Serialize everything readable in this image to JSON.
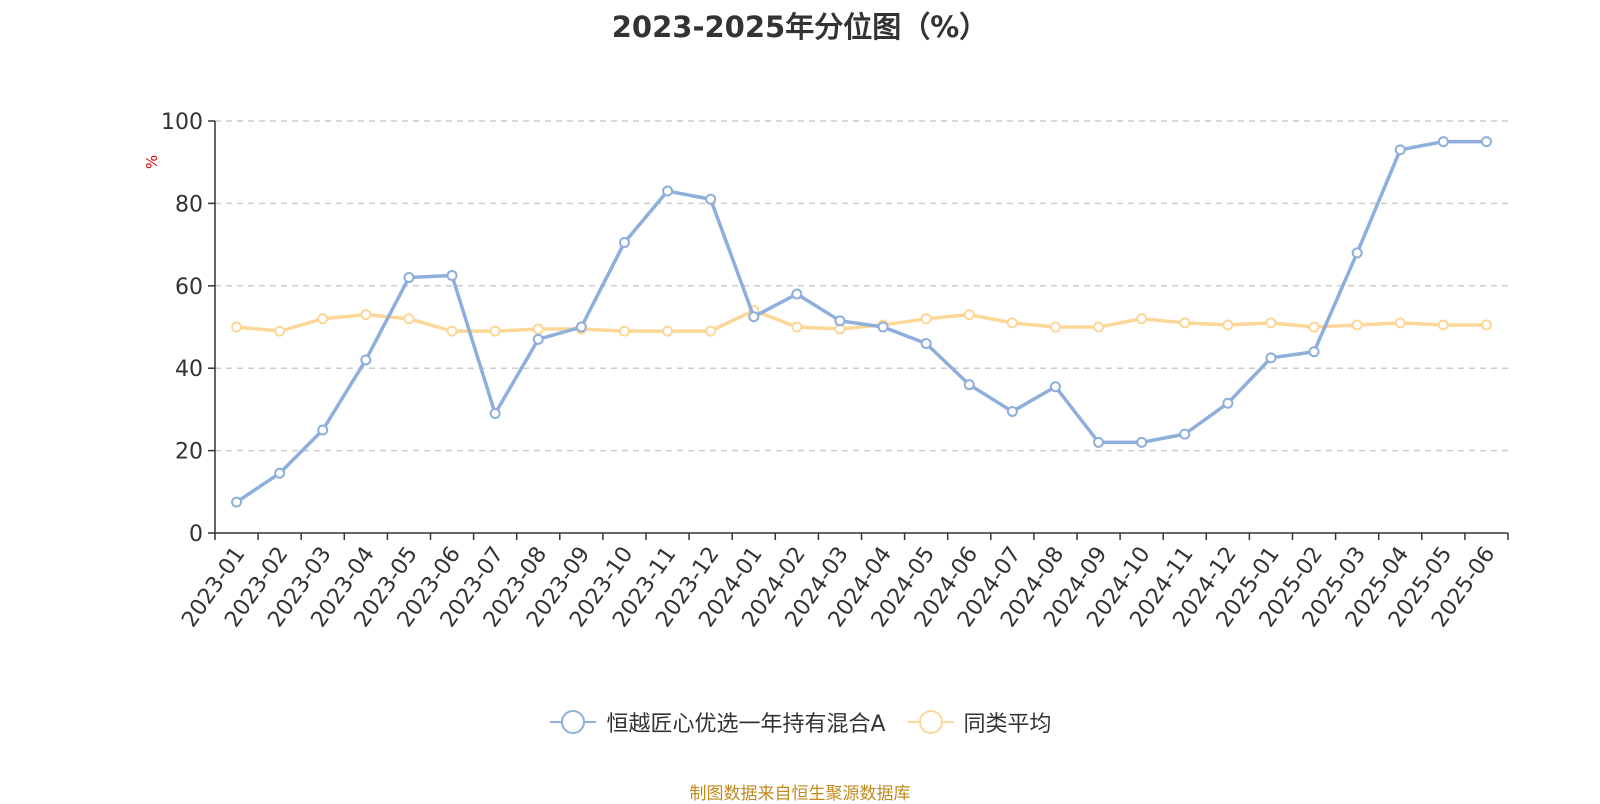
{
  "chart_data": {
    "type": "line",
    "title": "2023-2025年分位图（%）",
    "ylabel": "%",
    "xlabel": "",
    "ylim": [
      0,
      100
    ],
    "yticks": [
      0,
      20,
      40,
      60,
      80,
      100
    ],
    "grid": "horizontal-dashed",
    "legend_position": "bottom-center",
    "categories": [
      "2023-01",
      "2023-02",
      "2023-03",
      "2023-04",
      "2023-05",
      "2023-06",
      "2023-07",
      "2023-08",
      "2023-09",
      "2023-10",
      "2023-11",
      "2023-12",
      "2024-01",
      "2024-02",
      "2024-03",
      "2024-04",
      "2024-05",
      "2024-06",
      "2024-07",
      "2024-08",
      "2024-09",
      "2024-10",
      "2024-11",
      "2024-12",
      "2025-01",
      "2025-02",
      "2025-03",
      "2025-04",
      "2025-05",
      "2025-06"
    ],
    "series": [
      {
        "name": "恒越匠心优选一年持有混合A",
        "color": "#8eaedb",
        "values": [
          7.5,
          14.5,
          25,
          42,
          62,
          62.5,
          29,
          47,
          50,
          70.5,
          83,
          81,
          52.5,
          58,
          51.5,
          50,
          46,
          36,
          29.5,
          35.5,
          22,
          22,
          24,
          31.5,
          42.5,
          44,
          68,
          93,
          95,
          95
        ]
      },
      {
        "name": "同类平均",
        "color": "#fdd797",
        "values": [
          50,
          49,
          52,
          53,
          52,
          49,
          49,
          49.5,
          49.5,
          49,
          49,
          49,
          54,
          50,
          49.5,
          50.5,
          52,
          53,
          51,
          50,
          50,
          52,
          51,
          50.5,
          51,
          50,
          50.5,
          51,
          50.5,
          50.5
        ]
      }
    ]
  },
  "footer": {
    "source": "制图数据来自恒生聚源数据库"
  }
}
